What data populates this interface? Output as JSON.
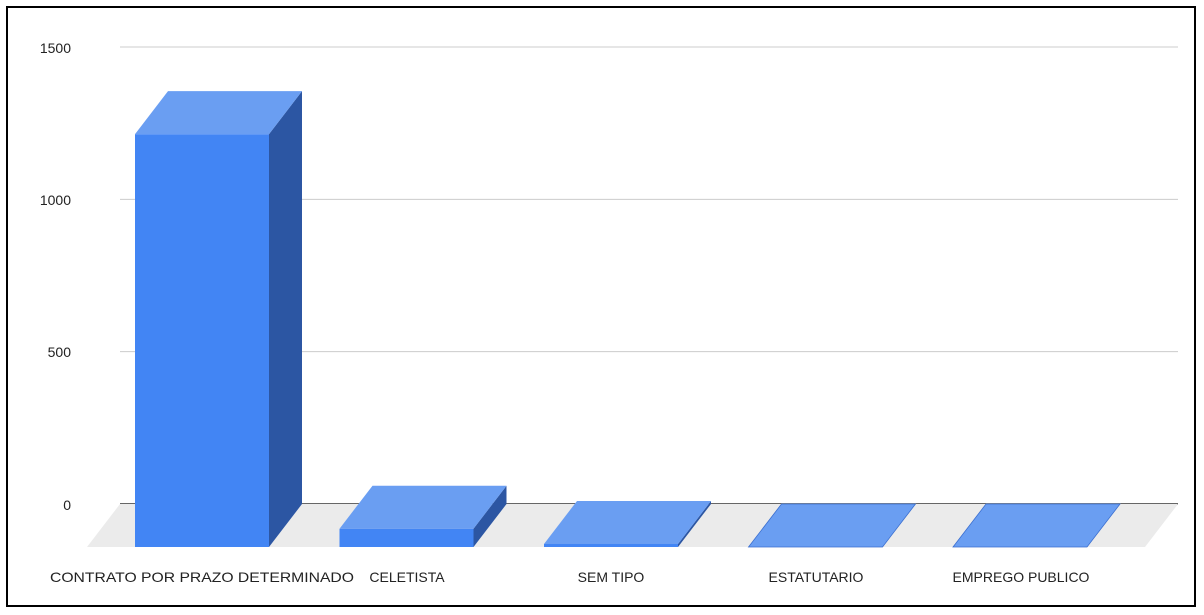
{
  "chart_data": {
    "type": "bar",
    "title": "",
    "xlabel": "",
    "ylabel": "",
    "ylim": [
      0,
      1500
    ],
    "y_ticks": [
      "0",
      "500",
      "1000",
      "1500"
    ],
    "categories": [
      "CONTRATO POR PRAZO DETERMINADO",
      "CELETISTA",
      "SEM TIPO",
      "ESTATUTARIO",
      "EMPREGO PUBLICO"
    ],
    "values": [
      1355,
      60,
      10,
      0,
      0
    ],
    "grid": true,
    "legend": "none",
    "three_d": true
  },
  "colors": {
    "front": "#4285F4",
    "top": "#6A9EF2",
    "side": "#2C56A3",
    "floor": "#EBEBEB",
    "grid": "#CCCCCC",
    "baseline": "#333333"
  }
}
